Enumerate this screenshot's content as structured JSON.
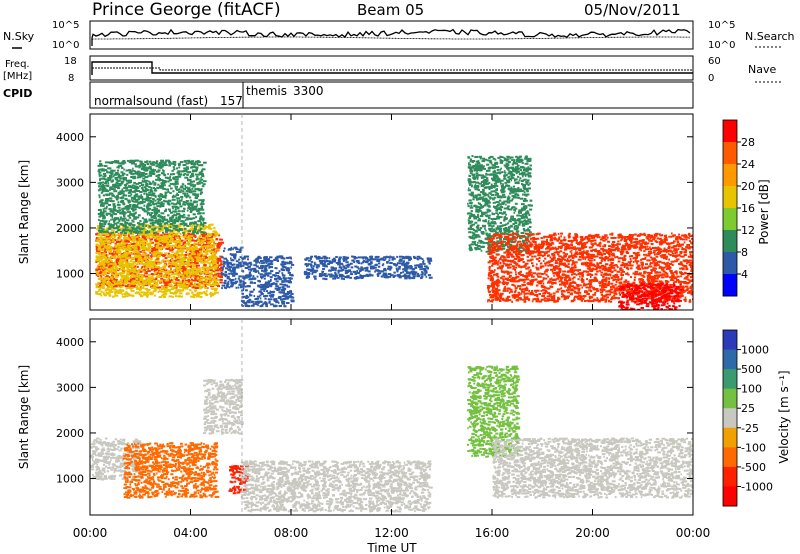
{
  "header": {
    "station": "Prince George (fitACF)",
    "beam": "Beam 05",
    "date": "05/Nov/2011"
  },
  "noise_panel": {
    "left_label": "N.Sky",
    "right_label": "N.Search",
    "left_ticks": [
      "10^5",
      "10^0"
    ],
    "right_ticks": [
      "10^5",
      "10^0"
    ]
  },
  "freq_panel": {
    "left_label_line1": "Freq.",
    "left_label_line2": "[MHz]",
    "right_label": "Nave",
    "left_ticks": [
      "18",
      "8"
    ],
    "right_ticks": [
      "60",
      "0"
    ]
  },
  "cpid": {
    "label": "CPID",
    "segments": [
      {
        "name": "normalsound (fast)",
        "id": "157"
      },
      {
        "name": "themis",
        "id": "3300"
      }
    ]
  },
  "colorbars": {
    "power": {
      "title": "Power [dB]",
      "ticks": [
        "28",
        "24",
        "20",
        "16",
        "12",
        "8",
        "4"
      ],
      "colors": [
        "#ff0000",
        "#ff5a00",
        "#ff9900",
        "#e8c400",
        "#7ecb30",
        "#2e8c5a",
        "#2d5aa8",
        "#0000ff"
      ]
    },
    "velocity": {
      "title": "Velocity [m s⁻¹]",
      "ticks": [
        "1000",
        "500",
        "100",
        "25",
        "-25",
        "-100",
        "-500",
        "-1000"
      ],
      "colors": [
        "#2a3ab8",
        "#2f6aa8",
        "#3a9a70",
        "#74c040",
        "#c8c8c0",
        "#f0a000",
        "#ff6a00",
        "#ff2000",
        "#ff0000"
      ]
    }
  },
  "chart_data": [
    {
      "type": "heatmap",
      "name": "Power",
      "ylabel": "Slant Range [km]",
      "ylim": [
        200,
        4500
      ],
      "xlim": [
        "00:00",
        "24:00"
      ],
      "yticks": [
        "1000",
        "2000",
        "3000",
        "4000"
      ],
      "xticks": [
        "00:00",
        "04:00",
        "08:00",
        "12:00",
        "16:00",
        "20:00",
        "00:00"
      ],
      "colorbar": "power",
      "regions": [
        {
          "t": [
            0.2,
            5.2
          ],
          "r": [
            700,
            1900
          ],
          "color": "#ff3000"
        },
        {
          "t": [
            0.2,
            5.0
          ],
          "r": [
            500,
            2100
          ],
          "color": "#e8c400"
        },
        {
          "t": [
            0.3,
            4.5
          ],
          "r": [
            1900,
            3500
          ],
          "color": "#2e8c5a"
        },
        {
          "t": [
            5.2,
            6.0
          ],
          "r": [
            700,
            1600
          ],
          "color": "#2d5aa8"
        },
        {
          "t": [
            6.0,
            8.0
          ],
          "r": [
            300,
            1400
          ],
          "color": "#2d5aa8"
        },
        {
          "t": [
            8.5,
            13.5
          ],
          "r": [
            900,
            1400
          ],
          "color": "#2d5aa8"
        },
        {
          "t": [
            15.0,
            17.5
          ],
          "r": [
            1500,
            3600
          ],
          "color": "#2e8c5a"
        },
        {
          "t": [
            15.8,
            24.0
          ],
          "r": [
            400,
            1900
          ],
          "color": "#ff3000"
        },
        {
          "t": [
            21.0,
            23.5
          ],
          "r": [
            200,
            800
          ],
          "color": "#ff0000"
        }
      ]
    },
    {
      "type": "heatmap",
      "name": "Velocity",
      "ylabel": "Slant Range [km]",
      "xlabel": "Time UT",
      "ylim": [
        200,
        4500
      ],
      "xlim": [
        "00:00",
        "24:00"
      ],
      "yticks": [
        "1000",
        "2000",
        "3000",
        "4000"
      ],
      "xticks": [
        "00:00",
        "04:00",
        "08:00",
        "12:00",
        "16:00",
        "20:00",
        "00:00"
      ],
      "colorbar": "velocity",
      "regions": [
        {
          "t": [
            0.0,
            2.0
          ],
          "r": [
            1000,
            1900
          ],
          "color": "#c8c8c0"
        },
        {
          "t": [
            1.3,
            5.0
          ],
          "r": [
            600,
            1800
          ],
          "color": "#ff6a00"
        },
        {
          "t": [
            4.5,
            6.0
          ],
          "r": [
            2000,
            3200
          ],
          "color": "#c8c8c0"
        },
        {
          "t": [
            5.5,
            6.2
          ],
          "r": [
            700,
            1300
          ],
          "color": "#ff2000"
        },
        {
          "t": [
            6.0,
            13.5
          ],
          "r": [
            300,
            1400
          ],
          "color": "#c8c8c0"
        },
        {
          "t": [
            15.0,
            17.0
          ],
          "r": [
            1500,
            3500
          ],
          "color": "#74c040"
        },
        {
          "t": [
            16.0,
            24.0
          ],
          "r": [
            600,
            1900
          ],
          "color": "#c8c8c0"
        }
      ]
    }
  ]
}
